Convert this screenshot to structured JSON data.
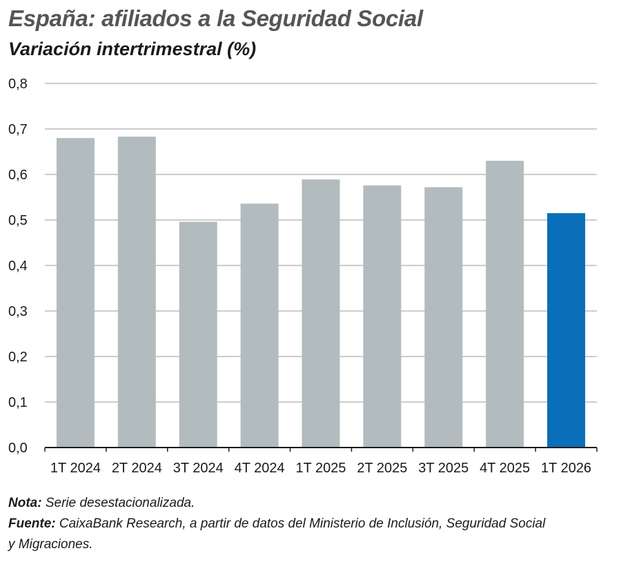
{
  "header": {
    "title": "España: afiliados a la Seguridad Social",
    "subtitle": "Variación intertrimestral (%)"
  },
  "chart_data": {
    "type": "bar",
    "title": "España: afiliados a la Seguridad Social",
    "subtitle": "Variación intertrimestral (%)",
    "categories": [
      "1T 2024",
      "2T 2024",
      "3T 2024",
      "4T 2024",
      "1T 2025",
      "2T 2025",
      "3T 2025",
      "4T 2025",
      "1T 2026"
    ],
    "values": [
      0.68,
      0.683,
      0.496,
      0.536,
      0.589,
      0.576,
      0.572,
      0.63,
      0.515
    ],
    "ylim": [
      0,
      0.8
    ],
    "yticks": [
      "0,0",
      "0,1",
      "0,2",
      "0,3",
      "0,4",
      "0,5",
      "0,6",
      "0,7",
      "0,8"
    ],
    "grid": true,
    "colors": {
      "default": "#b2bcbf",
      "highlight": "#0a6fb8",
      "grid": "#9a9a9a",
      "axis": "#1a1a1a"
    },
    "highlight_index": 8
  },
  "notes": {
    "nota_label": "Nota:",
    "nota_text": "Serie desestacionalizada.",
    "fuente_label": "Fuente:",
    "fuente_text_line1": "CaixaBank Research, a partir de datos del Ministerio de Inclusión, Seguridad Social",
    "fuente_text_line2": "y Migraciones."
  }
}
